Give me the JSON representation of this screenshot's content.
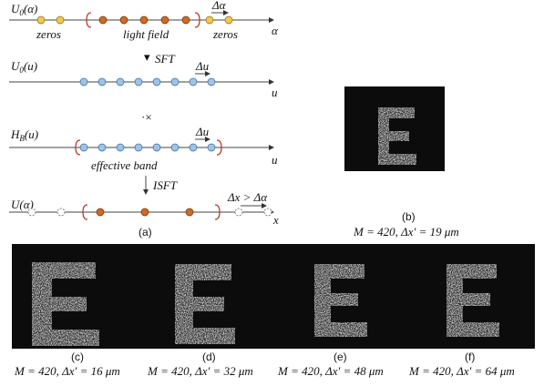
{
  "panel_a": {
    "row1": {
      "label_main": "U",
      "label_sub": "0",
      "label_arg": "(α)",
      "zeros_left": "zeros",
      "light_field": "light field",
      "zeros_right": "zeros",
      "step": "Δα",
      "axis": "α"
    },
    "row2": {
      "label_main": "U",
      "label_sub": "0",
      "label_arg": "(u)",
      "operation": "SFT",
      "step": "Δu",
      "axis": "u"
    },
    "multiply": "·×",
    "row3": {
      "label_main": "H",
      "label_sub": "B",
      "label_arg": "(u)",
      "step": "Δu",
      "band": "effective band",
      "axis": "u"
    },
    "operation": "ISFT",
    "row4": {
      "label": "U(α)",
      "step": "Δx > Δα",
      "axis": "x"
    },
    "caption": "(a)"
  },
  "panel_b": {
    "caption": "(b)",
    "params": "M = 420, Δx′ = 19 μm"
  },
  "panels": [
    {
      "caption": "(c)",
      "params": "M = 420, Δx′ = 16 μm"
    },
    {
      "caption": "(d)",
      "params": "M = 420, Δx′ = 32 μm"
    },
    {
      "caption": "(e)",
      "params": "M = 420, Δx′ = 48 μm"
    },
    {
      "caption": "(f)",
      "params": "M = 420, Δx′ = 64 μm"
    }
  ]
}
